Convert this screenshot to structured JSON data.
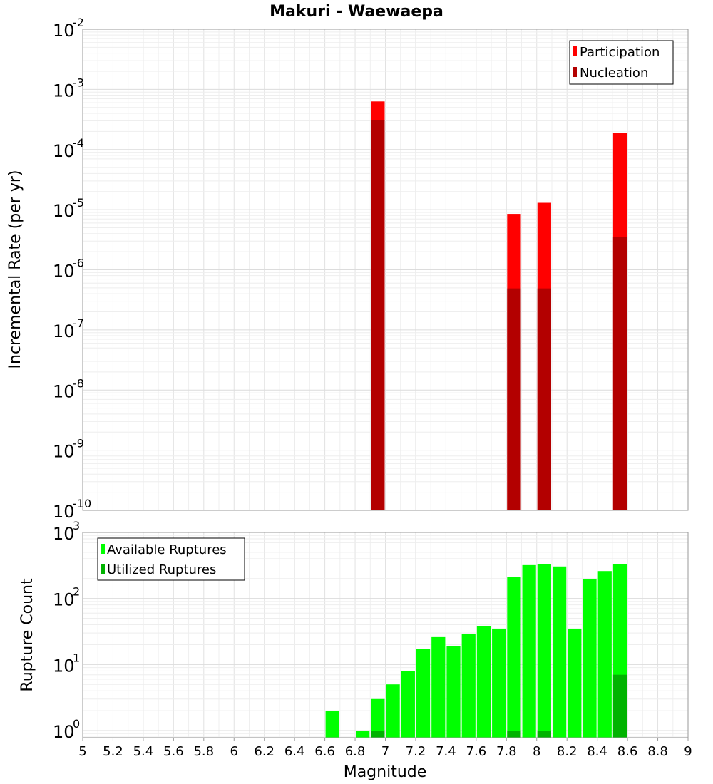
{
  "chart_data": [
    {
      "id": "rates",
      "type": "bar",
      "title": "Makuri - Waewaepa",
      "ylabel": "Incremental Rate (per yr)",
      "yscale": "log",
      "ylim": [
        1e-10,
        0.01
      ],
      "xlim": [
        5,
        9
      ],
      "bin_width": 0.1,
      "grid": true,
      "legend_position": "top-right",
      "series": [
        {
          "name": "Participation",
          "color": "#ff0000",
          "points": [
            [
              6.95,
              0.00063
            ],
            [
              7.85,
              8.5e-06
            ],
            [
              8.05,
              1.3e-05
            ],
            [
              8.55,
              0.00019
            ]
          ]
        },
        {
          "name": "Nucleation",
          "color": "#b30000",
          "points": [
            [
              6.95,
              0.00031
            ],
            [
              7.85,
              4.9e-07
            ],
            [
              8.05,
              4.9e-07
            ],
            [
              8.55,
              3.5e-06
            ]
          ]
        }
      ]
    },
    {
      "id": "counts",
      "type": "bar",
      "xlabel": "Magnitude",
      "ylabel": "Rupture Count",
      "yscale": "log",
      "ylim": [
        0.78,
        1000
      ],
      "xlim": [
        5,
        9
      ],
      "bin_width": 0.1,
      "grid": true,
      "legend_position": "top-left",
      "series": [
        {
          "name": "Available Ruptures",
          "color": "#00ff00",
          "points": [
            [
              6.65,
              2
            ],
            [
              6.85,
              1
            ],
            [
              6.95,
              3
            ],
            [
              7.05,
              5
            ],
            [
              7.15,
              8
            ],
            [
              7.25,
              17
            ],
            [
              7.35,
              26
            ],
            [
              7.45,
              19
            ],
            [
              7.55,
              29
            ],
            [
              7.65,
              38
            ],
            [
              7.75,
              35
            ],
            [
              7.85,
              210
            ],
            [
              7.95,
              320
            ],
            [
              8.05,
              330
            ],
            [
              8.15,
              305
            ],
            [
              8.25,
              35
            ],
            [
              8.35,
              195
            ],
            [
              8.45,
              260
            ],
            [
              8.55,
              335
            ]
          ]
        },
        {
          "name": "Utilized Ruptures",
          "color": "#00b300",
          "points": [
            [
              6.95,
              1
            ],
            [
              7.85,
              1
            ],
            [
              8.05,
              1
            ],
            [
              8.55,
              7
            ]
          ]
        }
      ]
    }
  ],
  "x_ticks": [
    "5",
    "5.2",
    "5.4",
    "5.6",
    "5.8",
    "6",
    "6.2",
    "6.4",
    "6.6",
    "6.8",
    "7",
    "7.2",
    "7.4",
    "7.6",
    "7.8",
    "8",
    "8.2",
    "8.4",
    "8.6",
    "8.8",
    "9"
  ]
}
